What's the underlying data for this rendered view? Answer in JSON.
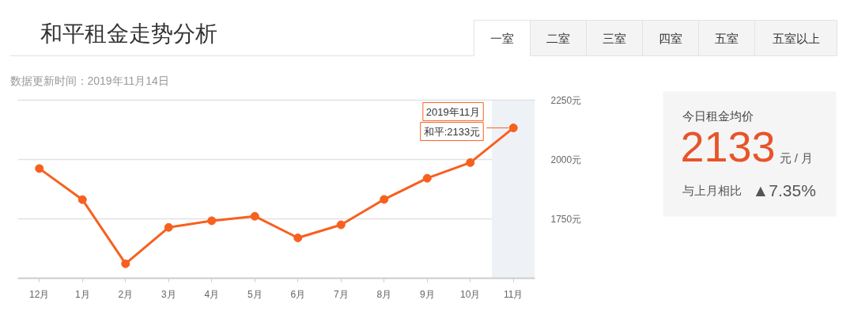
{
  "chart_data": [
    {
      "type": "line",
      "title": "和平租金走势分析",
      "subtitle": "数据更新时间：2019年11月14日",
      "categories": [
        "12月",
        "1月",
        "2月",
        "3月",
        "4月",
        "5月",
        "6月",
        "7月",
        "8月",
        "9月",
        "10月",
        "11月"
      ],
      "series": [
        {
          "color": "#f7601f",
          "values": [
            1962,
            1831,
            1561,
            1714,
            1742,
            1761,
            1670,
            1725,
            1832,
            1921,
            1987,
            2133
          ]
        }
      ],
      "ylim": [
        1500,
        2250
      ],
      "yticks": [
        {
          "value": 1750,
          "label": "1750元"
        },
        {
          "value": 2000,
          "label": "2000元"
        },
        {
          "value": 2250,
          "label": "2250元"
        }
      ],
      "grid": "y",
      "marker": "circle",
      "line_style": "solid",
      "bands": [
        {
          "axis": "x",
          "from": "11月",
          "to": "11月",
          "color": "#eef2f7"
        }
      ],
      "annotations": [
        {
          "text": "2019年11月",
          "x": "11月",
          "y": 2133
        },
        {
          "text": "和平:2133元",
          "x": "11月",
          "y": 2133
        }
      ]
    },
    {
      "type": "other",
      "annotations": [
        "一室",
        "二室",
        "三室",
        "四室",
        "五室",
        "五室以上"
      ]
    },
    {
      "type": "other",
      "title": "今日租金均价",
      "annotations": [
        "2133",
        "元 / 月",
        "与上月相比",
        "▲7.35%"
      ]
    }
  ]
}
